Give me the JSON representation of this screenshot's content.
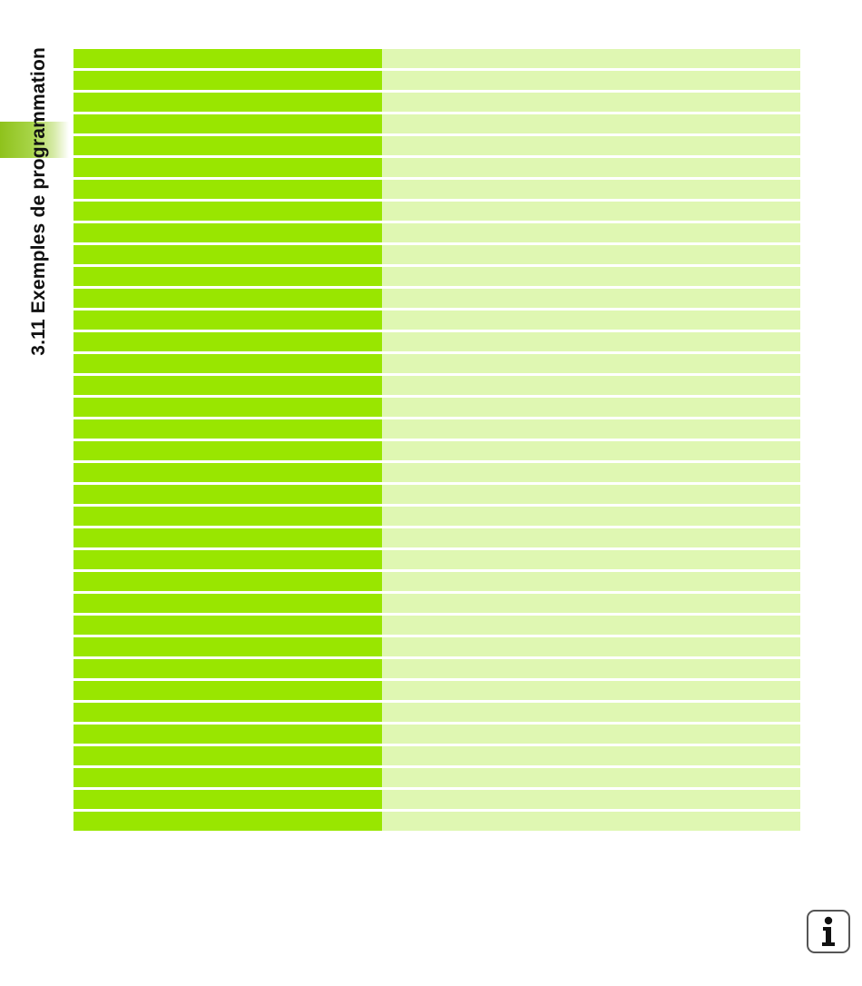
{
  "page": {
    "section_title": "3.11 Exemples de programmation"
  },
  "table": {
    "rows": [
      {
        "left": "",
        "right": ""
      },
      {
        "left": "",
        "right": ""
      },
      {
        "left": "",
        "right": ""
      },
      {
        "left": "",
        "right": ""
      },
      {
        "left": "",
        "right": ""
      },
      {
        "left": "",
        "right": ""
      },
      {
        "left": "",
        "right": ""
      },
      {
        "left": "",
        "right": ""
      },
      {
        "left": "",
        "right": ""
      },
      {
        "left": "",
        "right": ""
      },
      {
        "left": "",
        "right": ""
      },
      {
        "left": "",
        "right": ""
      },
      {
        "left": "",
        "right": ""
      },
      {
        "left": "",
        "right": ""
      },
      {
        "left": "",
        "right": ""
      },
      {
        "left": "",
        "right": ""
      },
      {
        "left": "",
        "right": ""
      },
      {
        "left": "",
        "right": ""
      },
      {
        "left": "",
        "right": ""
      },
      {
        "left": "",
        "right": ""
      },
      {
        "left": "",
        "right": ""
      },
      {
        "left": "",
        "right": ""
      },
      {
        "left": "",
        "right": ""
      },
      {
        "left": "",
        "right": ""
      },
      {
        "left": "",
        "right": ""
      },
      {
        "left": "",
        "right": ""
      },
      {
        "left": "",
        "right": ""
      },
      {
        "left": "",
        "right": ""
      },
      {
        "left": "",
        "right": ""
      },
      {
        "left": "",
        "right": ""
      },
      {
        "left": "",
        "right": ""
      },
      {
        "left": "",
        "right": ""
      },
      {
        "left": "",
        "right": ""
      },
      {
        "left": "",
        "right": ""
      },
      {
        "left": "",
        "right": ""
      },
      {
        "left": "",
        "right": ""
      }
    ]
  },
  "colors": {
    "left_column": "#99e600",
    "right_column": "#dff7b2",
    "tab_accent": "#8fc21c"
  },
  "icons": {
    "info": "info-icon"
  }
}
